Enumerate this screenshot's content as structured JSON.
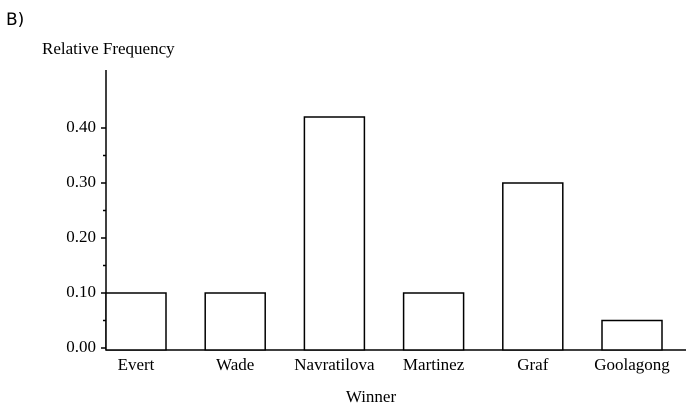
{
  "chart_data": {
    "type": "bar",
    "label": "B)",
    "y_label": "Relative Frequency",
    "x_label": "Winner",
    "categories": [
      "Evert",
      "Wade",
      "Navratilova",
      "Martinez",
      "Graf",
      "Goolagong"
    ],
    "values": [
      0.1,
      0.1,
      0.42,
      0.1,
      0.3,
      0.05
    ],
    "color": "#ffffff",
    "ylim": [
      0,
      0.5
    ],
    "yticks": [
      {
        "value": 0,
        "label": "0.00"
      },
      {
        "value": 0.1,
        "label": "0.10"
      },
      {
        "value": 0.2,
        "label": "0.20"
      },
      {
        "value": 0.3,
        "label": "0.30"
      },
      {
        "value": 0.4,
        "label": "0.40"
      }
    ],
    "grid": false
  }
}
